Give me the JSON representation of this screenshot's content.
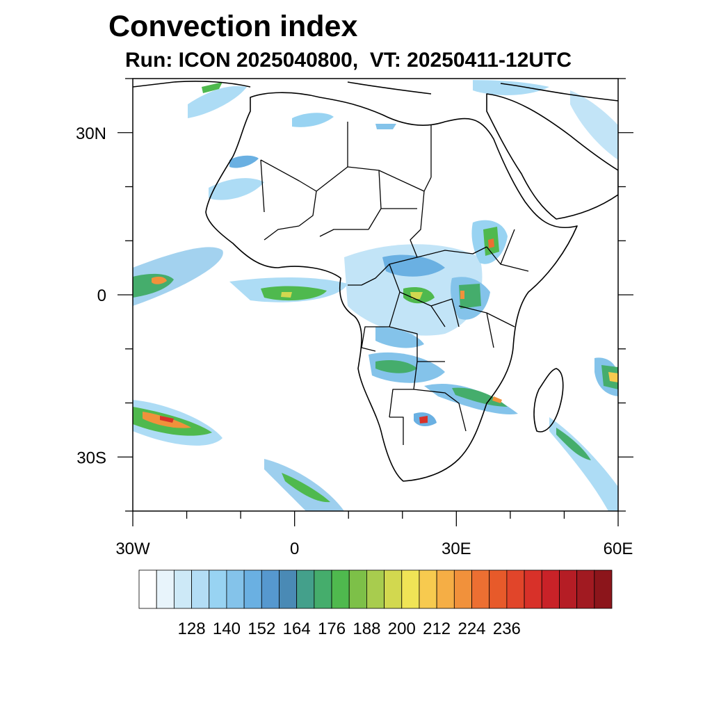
{
  "title": "Convection index",
  "subtitle": "Run: ICON 2025040800,  VT: 20250411-12UTC",
  "axes": {
    "lon_ticks": [
      {
        "value": -30,
        "label": "30W"
      },
      {
        "value": 0,
        "label": "0"
      },
      {
        "value": 30,
        "label": "30E"
      },
      {
        "value": 60,
        "label": "60E"
      }
    ],
    "lat_ticks": [
      {
        "value": 30,
        "label": "30N"
      },
      {
        "value": 0,
        "label": "0"
      },
      {
        "value": -30,
        "label": "30S"
      }
    ],
    "lon_range": [
      -30,
      60
    ],
    "lat_range": [
      -40,
      40
    ]
  },
  "colorbar": {
    "colors": [
      "#ffffff",
      "#e8f4fb",
      "#cde9f7",
      "#b3ddf5",
      "#98d3f2",
      "#84c3ea",
      "#6ab0e2",
      "#5698cf",
      "#4a8ab5",
      "#44a08b",
      "#45ad6c",
      "#4fb94e",
      "#7dc048",
      "#a8cc4e",
      "#d2d84f",
      "#f0e456",
      "#f7ca4f",
      "#f5ae45",
      "#f1913b",
      "#ec6f32",
      "#e75a2a",
      "#e1452a",
      "#d83129",
      "#c92228",
      "#b51d25",
      "#a11a21",
      "#8c151b"
    ],
    "labels": [
      "128",
      "140",
      "152",
      "164",
      "176",
      "188",
      "200",
      "212",
      "224",
      "236"
    ]
  }
}
